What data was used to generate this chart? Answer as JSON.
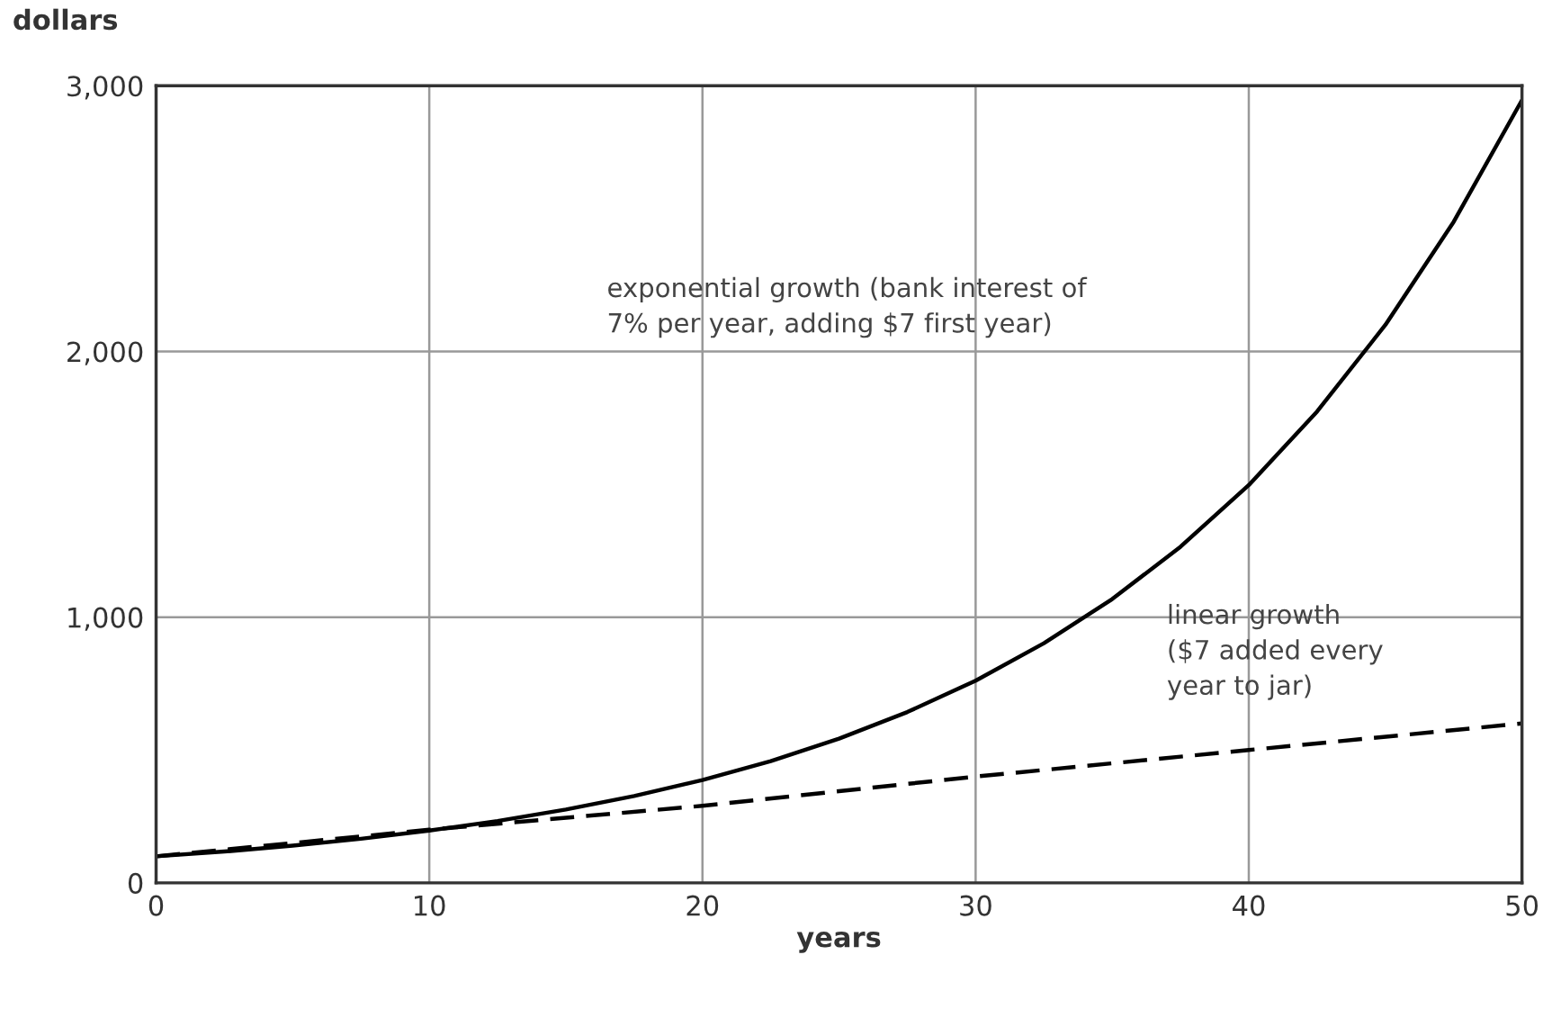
{
  "chart_data": {
    "type": "line",
    "xlabel": "years",
    "ylabel": "dollars",
    "xlim": [
      0,
      50
    ],
    "xticks": [
      0,
      10,
      20,
      30,
      40,
      50
    ],
    "ylim": [
      0,
      3000
    ],
    "yticks": [
      0,
      {
        "value": 1000,
        "label": "1,000"
      },
      {
        "value": 2000,
        "label": "2,000"
      },
      {
        "value": 3000,
        "label": "3,000"
      }
    ],
    "grid": true,
    "legend": false,
    "series": [
      {
        "color": "#000000",
        "line_style": "solid",
        "x": [
          0,
          2.5,
          5,
          7.5,
          10,
          12.5,
          15,
          17.5,
          20,
          22.5,
          25,
          27.5,
          30,
          32.5,
          35,
          37.5,
          40,
          42.5,
          45,
          47.5,
          50
        ],
        "values": [
          100,
          118,
          140,
          166,
          197,
          233,
          276,
          327,
          387,
          458,
          543,
          643,
          761,
          902,
          1068,
          1265,
          1497,
          1774,
          2100,
          2488,
          2946
        ]
      },
      {
        "color": "#000000",
        "line_style": "dashed",
        "x": [
          0,
          10,
          20,
          30,
          40,
          50
        ],
        "values": [
          100,
          200,
          290,
          400,
          500,
          600
        ]
      }
    ],
    "annotations": [
      "exponential growth (bank interest of\n7% per year, adding $7 first year)",
      "linear growth\n($7 added every\nyear to jar)"
    ]
  }
}
